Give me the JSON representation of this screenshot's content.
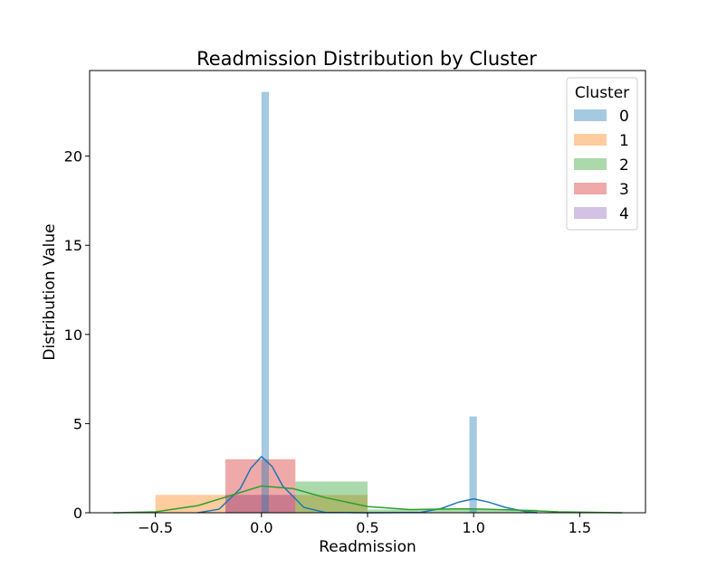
{
  "chart_data": {
    "type": "bar",
    "title": "Readmission Distribution by Cluster",
    "xlabel": "Readmission",
    "ylabel": "Distribution Value",
    "xlim": [
      -0.81,
      1.81
    ],
    "ylim": [
      0,
      24.8
    ],
    "xticks": [
      -0.5,
      0.0,
      0.5,
      1.0,
      1.5
    ],
    "xtick_labels": [
      "−0.5",
      "0.0",
      "0.5",
      "1.0",
      "1.5"
    ],
    "yticks": [
      0,
      5,
      10,
      15,
      20
    ],
    "ytick_labels": [
      "0",
      "5",
      "10",
      "15",
      "20"
    ],
    "grid": false,
    "legend": {
      "title": "Cluster",
      "placement": "top-right"
    },
    "series": [
      {
        "name": "0",
        "color": "#1f77b4",
        "bins": [
          {
            "x0": 0.0,
            "x1": 0.035,
            "value": 23.6
          },
          {
            "x0": 0.98,
            "x1": 1.015,
            "value": 5.4
          }
        ],
        "kde": [
          [
            -0.3,
            0
          ],
          [
            -0.2,
            0.2
          ],
          [
            -0.1,
            1.35
          ],
          [
            -0.05,
            2.5
          ],
          [
            0,
            3.15
          ],
          [
            0.05,
            2.6
          ],
          [
            0.1,
            1.5
          ],
          [
            0.2,
            0.3
          ],
          [
            0.3,
            0.02
          ],
          [
            0.5,
            0
          ],
          [
            0.75,
            0.02
          ],
          [
            0.85,
            0.25
          ],
          [
            0.93,
            0.6
          ],
          [
            1.0,
            0.78
          ],
          [
            1.07,
            0.6
          ],
          [
            1.15,
            0.3
          ],
          [
            1.25,
            0.05
          ],
          [
            1.3,
            0
          ]
        ]
      },
      {
        "name": "1",
        "color": "#ff7f0e",
        "bins": [
          {
            "x0": -0.5,
            "x1": 0.5,
            "value": 1.0
          }
        ],
        "kde": []
      },
      {
        "name": "2",
        "color": "#2ca02c",
        "bins": [
          {
            "x0": 0.16,
            "x1": 0.5,
            "value": 1.75
          },
          {
            "x0": 0.5,
            "x1": 1.3,
            "value": 0.18
          }
        ],
        "kde": [
          [
            -0.7,
            0
          ],
          [
            -0.5,
            0.05
          ],
          [
            -0.3,
            0.4
          ],
          [
            -0.15,
            0.95
          ],
          [
            0,
            1.5
          ],
          [
            0.15,
            1.35
          ],
          [
            0.3,
            0.85
          ],
          [
            0.5,
            0.35
          ],
          [
            0.7,
            0.18
          ],
          [
            0.9,
            0.22
          ],
          [
            1.0,
            0.22
          ],
          [
            1.2,
            0.15
          ],
          [
            1.4,
            0.05
          ],
          [
            1.7,
            0
          ]
        ]
      },
      {
        "name": "3",
        "color": "#d62728",
        "bins": [
          {
            "x0": -0.17,
            "x1": 0.16,
            "value": 3.0
          }
        ],
        "kde": []
      },
      {
        "name": "4",
        "color": "#9467bd",
        "bins": [
          {
            "x0": -0.17,
            "x1": 0.16,
            "value": 1.0
          }
        ],
        "kde": []
      }
    ]
  }
}
